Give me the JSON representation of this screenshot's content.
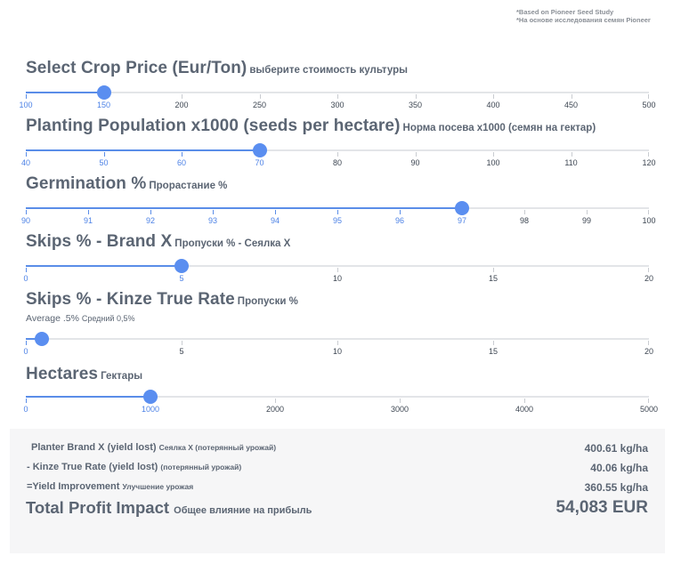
{
  "source_note": {
    "line1": "*Based on Pioneer Seed Study",
    "line2": "*На основе исследования семян Pioneer"
  },
  "sliders": [
    {
      "id": "crop-price",
      "title": "Select Crop Price (Eur/Ton)",
      "title_ru": "выберите стоимость культуры",
      "min": 100,
      "max": 500,
      "value": 150,
      "ticks": [
        "100",
        "150",
        "200",
        "250",
        "300",
        "350",
        "400",
        "450",
        "500"
      ]
    },
    {
      "id": "planting-population",
      "title": "Planting Population x1000 (seeds per hectare)",
      "title_ru": "Норма посева x1000 (семян на гектар)",
      "min": 40,
      "max": 120,
      "value": 70,
      "ticks": [
        "40",
        "50",
        "60",
        "70",
        "80",
        "90",
        "100",
        "110",
        "120"
      ]
    },
    {
      "id": "germination",
      "title": "Germination %",
      "title_ru": "Прорастание %",
      "min": 90,
      "max": 100,
      "value": 97,
      "ticks": [
        "90",
        "91",
        "92",
        "93",
        "94",
        "95",
        "96",
        "97",
        "98",
        "99",
        "100"
      ]
    },
    {
      "id": "skips-brand-x",
      "title": "Skips % - Brand X",
      "title_ru": "Пропуски % - Сеялка X",
      "min": 0,
      "max": 20,
      "value": 5,
      "ticks": [
        "0",
        "5",
        "10",
        "15",
        "20"
      ]
    },
    {
      "id": "skips-kinze",
      "title": "Skips % - Kinze True Rate",
      "title_ru": "Пропуски %",
      "subtitle": "Average .5%",
      "subtitle_ru": "Средний 0,5%",
      "min": 0,
      "max": 20,
      "value": 0.5,
      "ticks": [
        "0",
        "5",
        "10",
        "15",
        "20"
      ]
    },
    {
      "id": "hectares",
      "title": "Hectares",
      "title_ru": "Гектары",
      "min": 0,
      "max": 5000,
      "value": 1000,
      "ticks": [
        "0",
        "1000",
        "2000",
        "3000",
        "4000",
        "5000"
      ]
    }
  ],
  "results": {
    "brand_x": {
      "label": "Planter Brand X (yield lost)",
      "label_ru": "Сеялка X (потерянный урожай)",
      "value": "400.61 kg/ha"
    },
    "kinze": {
      "label": "- Kinze True Rate (yield lost)",
      "label_ru": "(потерянный урожай)",
      "value": "40.06 kg/ha"
    },
    "improvement": {
      "label": "=Yield Improvement",
      "label_ru": "Улучшение урожая",
      "value": "360.55 kg/ha"
    },
    "total": {
      "label": "Total Profit Impact",
      "label_ru": "Общее влияние на прибыль",
      "value": "54,083 EUR"
    }
  }
}
